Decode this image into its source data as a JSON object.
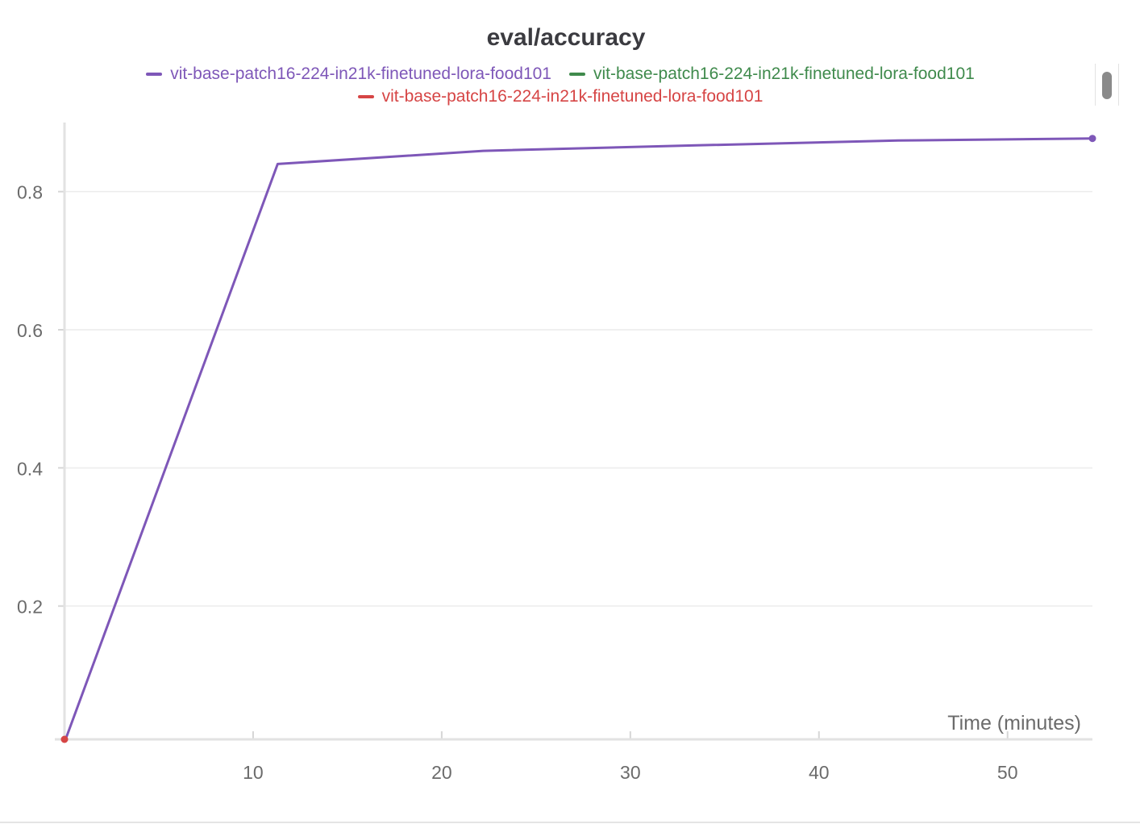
{
  "chart_data": {
    "type": "line",
    "title": "eval/accuracy",
    "xlabel": "Time (minutes)",
    "ylabel": "",
    "xlim": [
      0,
      54.5
    ],
    "ylim": [
      0.007,
      0.9
    ],
    "xticks": [
      10,
      20,
      30,
      40,
      50
    ],
    "yticks": [
      0.2,
      0.4,
      0.6,
      0.8
    ],
    "grid": true,
    "legend_position": "top-center",
    "series": [
      {
        "name": "vit-base-patch16-224-in21k-finetuned-lora-food101",
        "color": "#7e57b8",
        "x": [
          0.1,
          11.3,
          22.2,
          33.5,
          44.2,
          54.5
        ],
        "y": [
          0.01,
          0.84,
          0.859,
          0.867,
          0.874,
          0.877
        ]
      },
      {
        "name": "vit-base-patch16-224-in21k-finetuned-lora-food101",
        "color": "#3f8a4c",
        "x": [],
        "y": []
      },
      {
        "name": "vit-base-patch16-224-in21k-finetuned-lora-food101",
        "color": "#d64545",
        "x": [
          0
        ],
        "y": [
          0.007
        ]
      }
    ]
  }
}
